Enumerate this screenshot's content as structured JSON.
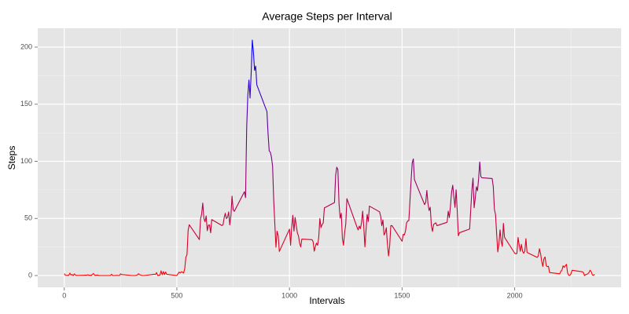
{
  "chart_data": {
    "type": "line",
    "title": "Average Steps per Interval",
    "xlabel": "Intervals",
    "ylabel": "Steps",
    "x": [
      0,
      5,
      10,
      15,
      20,
      25,
      30,
      35,
      40,
      45,
      50,
      55,
      100,
      105,
      110,
      115,
      120,
      125,
      130,
      135,
      140,
      145,
      150,
      155,
      200,
      205,
      210,
      215,
      220,
      225,
      230,
      235,
      240,
      245,
      250,
      255,
      300,
      305,
      310,
      315,
      320,
      325,
      330,
      335,
      340,
      345,
      350,
      355,
      400,
      405,
      410,
      415,
      420,
      425,
      430,
      435,
      440,
      445,
      450,
      455,
      500,
      505,
      510,
      515,
      520,
      525,
      530,
      535,
      540,
      545,
      550,
      555,
      600,
      605,
      610,
      615,
      620,
      625,
      630,
      635,
      640,
      645,
      650,
      655,
      700,
      705,
      710,
      715,
      720,
      725,
      730,
      735,
      740,
      745,
      750,
      755,
      800,
      805,
      810,
      815,
      820,
      825,
      830,
      835,
      840,
      845,
      850,
      855,
      900,
      905,
      910,
      915,
      920,
      925,
      930,
      935,
      940,
      945,
      950,
      955,
      1000,
      1005,
      1010,
      1015,
      1020,
      1025,
      1030,
      1035,
      1040,
      1045,
      1050,
      1055,
      1100,
      1105,
      1110,
      1115,
      1120,
      1125,
      1130,
      1135,
      1140,
      1145,
      1150,
      1155,
      1200,
      1205,
      1210,
      1215,
      1220,
      1225,
      1230,
      1235,
      1240,
      1245,
      1250,
      1255,
      1300,
      1305,
      1310,
      1315,
      1320,
      1325,
      1330,
      1335,
      1340,
      1345,
      1350,
      1355,
      1400,
      1405,
      1410,
      1415,
      1420,
      1425,
      1430,
      1435,
      1440,
      1445,
      1450,
      1455,
      1500,
      1505,
      1510,
      1515,
      1520,
      1525,
      1530,
      1535,
      1540,
      1545,
      1550,
      1555,
      1600,
      1605,
      1610,
      1615,
      1620,
      1625,
      1630,
      1635,
      1640,
      1645,
      1650,
      1655,
      1700,
      1705,
      1710,
      1715,
      1720,
      1725,
      1730,
      1735,
      1740,
      1745,
      1750,
      1755,
      1800,
      1805,
      1810,
      1815,
      1820,
      1825,
      1830,
      1835,
      1840,
      1845,
      1850,
      1855,
      1900,
      1905,
      1910,
      1915,
      1920,
      1925,
      1930,
      1935,
      1940,
      1945,
      1950,
      1955,
      2000,
      2005,
      2010,
      2015,
      2020,
      2025,
      2030,
      2035,
      2040,
      2045,
      2050,
      2055,
      2100,
      2105,
      2110,
      2115,
      2120,
      2125,
      2130,
      2135,
      2140,
      2145,
      2150,
      2155,
      2200,
      2205,
      2210,
      2215,
      2220,
      2225,
      2230,
      2235,
      2240,
      2245,
      2250,
      2255,
      2300,
      2305,
      2310,
      2315,
      2320,
      2325,
      2330,
      2335,
      2340,
      2345,
      2350,
      2355
    ],
    "values": [
      1.7,
      0.3,
      0.1,
      0.2,
      0.1,
      2.1,
      0.5,
      0.9,
      0,
      1.5,
      0.3,
      0.1,
      0.3,
      0.7,
      0.2,
      0.3,
      0,
      1.1,
      1.8,
      0.2,
      0.2,
      0.4,
      0.3,
      0,
      0,
      0,
      1.1,
      0,
      0,
      0.1,
      0,
      0.2,
      0,
      0,
      1.5,
      0.9,
      0,
      0,
      0,
      0,
      0.2,
      0.6,
      1.6,
      0.6,
      0.5,
      0.1,
      0,
      0,
      1.2,
      0.9,
      2.6,
      0,
      0.3,
      0.4,
      4.1,
      0.7,
      3.5,
      0.8,
      3.1,
      1.1,
      0,
      1.6,
      3,
      2.2,
      3.3,
      3,
      2.1,
      6.1,
      16,
      18.3,
      39.5,
      44.5,
      31.5,
      49.3,
      53.8,
      63.5,
      50,
      47.1,
      52.2,
      39.3,
      44.1,
      44.2,
      37.4,
      49,
      43.8,
      44.4,
      50.5,
      54.5,
      49.9,
      51,
      55.7,
      44.3,
      52.3,
      69.5,
      57.8,
      56.2,
      73.4,
      68.2,
      129.4,
      157.5,
      171.2,
      155.4,
      177.3,
      206.2,
      195.9,
      179.6,
      183.4,
      167,
      143.5,
      124,
      109.1,
      108.1,
      103.7,
      95.9,
      66.2,
      45.2,
      24.8,
      38.8,
      35,
      21.1,
      40.6,
      26.5,
      42.4,
      52.7,
      38.9,
      50.8,
      44.3,
      37.4,
      34.7,
      28.3,
      25.1,
      31.9,
      31.4,
      29.7,
      21.3,
      25.5,
      28.4,
      26.5,
      33.4,
      50,
      42,
      44.6,
      46,
      59.2,
      63.9,
      87.7,
      94.8,
      92.8,
      63.4,
      50.2,
      54.5,
      32.4,
      26.5,
      37.7,
      45.1,
      67.3,
      42.3,
      39.9,
      43.3,
      41,
      46.2,
      56.4,
      42.8,
      25.1,
      40,
      53.5,
      47.3,
      60.8,
      55.8,
      52,
      43.6,
      48.7,
      35.5,
      37.5,
      41.8,
      27.5,
      17.1,
      26.1,
      43.6,
      43.8,
      30,
      36.1,
      35.5,
      38.8,
      46,
      47.8,
      48.1,
      65.3,
      82.9,
      98.7,
      102.1,
      84,
      62.1,
      64.1,
      74.5,
      63.2,
      56.9,
      59.8,
      43.9,
      38.6,
      44.7,
      45.5,
      46.2,
      43.7,
      46.6,
      56.3,
      50.7,
      61.2,
      73.4,
      79.1,
      68.9,
      59.7,
      75.1,
      56.5,
      34.8,
      37.5,
      40.7,
      58,
      74.7,
      85.3,
      59.3,
      67.8,
      77.7,
      74.2,
      85.3,
      99.5,
      86.6,
      85.6,
      84.9,
      77.8,
      58,
      53.4,
      36.3,
      20.7,
      27.4,
      40,
      30.2,
      25.5,
      45.7,
      33.5,
      19.6,
      19,
      19.3,
      33.3,
      26.8,
      21.2,
      27.3,
      21.3,
      19.5,
      21.3,
      32.3,
      20.2,
      15.9,
      17.2,
      23.5,
      19.2,
      12.5,
      8,
      14.7,
      16.3,
      8.7,
      7.8,
      8.1,
      2.6,
      1.5,
      3.7,
      4.8,
      8.5,
      7.1,
      8.7,
      9.8,
      2.2,
      0.3,
      0.1,
      1.6,
      4.6,
      3.3,
      2.8,
      0,
      0.8,
      1,
      1.6,
      2.6,
      4.7,
      3.3,
      0.6,
      0.2,
      1.1
    ],
    "color_low": "red",
    "color_high": "blue",
    "xlim": [
      -117.75,
      2472.75
    ],
    "xticks": [
      0,
      500,
      1000,
      1500,
      2000
    ],
    "x_minor_ticks": [
      250,
      750,
      1250,
      1750,
      2250
    ],
    "ylim": [
      -10.3,
      216.5
    ],
    "yticks": [
      0,
      50,
      100,
      150,
      200
    ],
    "y_minor_ticks": [
      25,
      75,
      125,
      175
    ],
    "grid": true
  }
}
